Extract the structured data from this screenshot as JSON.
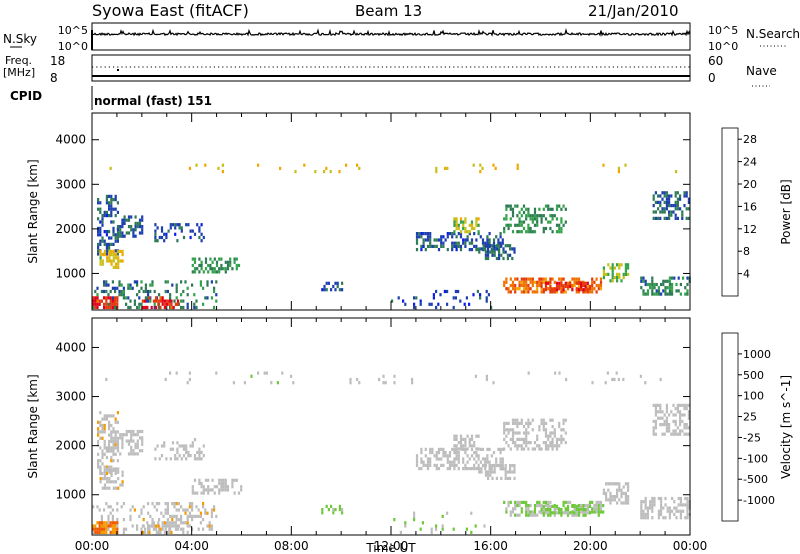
{
  "header": {
    "title": "Syowa East (fitACF)",
    "beam": "Beam 13",
    "date": "21/Jan/2010"
  },
  "nsky_panel": {
    "label": "N.Sky",
    "label_right": "N.Search",
    "ticks_left": [
      "10^5",
      "10^0"
    ],
    "ticks_right": [
      "10^5",
      "10^0"
    ]
  },
  "freq_panel": {
    "label": "Freq.",
    "unit": "[MHz]",
    "label_right": "Nave",
    "ticks_left": [
      "18",
      "8"
    ],
    "ticks_right": [
      "60",
      "0"
    ]
  },
  "cpid_panel": {
    "label": "CPID",
    "text": "normal (fast) 151"
  },
  "colors": {
    "power": [
      "#0a1de6",
      "#1e3fae",
      "#2d7a55",
      "#33a24a",
      "#c8c01a",
      "#f2a800",
      "#f07000",
      "#e43a0d",
      "#e2001a"
    ],
    "velocity": [
      "#e2001a",
      "#f05a00",
      "#f59b00",
      "#bdbdbd",
      "#bdbdbd",
      "#6fc83a",
      "#2e8a4a",
      "#2a4aa8",
      "#1e32c8"
    ]
  },
  "chart_data": [
    {
      "type": "heatmap",
      "name": "power",
      "ylabel": "Slant Range [km]",
      "xlabel": "",
      "x_ticks": [
        "00:00",
        "04:00",
        "08:00",
        "12:00",
        "16:00",
        "20:00",
        "00:00"
      ],
      "y_ticks": [
        "1000",
        "2000",
        "3000",
        "4000"
      ],
      "ylim": [
        180,
        4600
      ],
      "xlim_hours": [
        0,
        24
      ],
      "colorbar": {
        "label": "Power [dB]",
        "ticks": [
          "4",
          "8",
          "12",
          "16",
          "20",
          "24",
          "28"
        ],
        "range": [
          0,
          30
        ]
      },
      "regions": [
        {
          "t0": 0,
          "t1": 24,
          "r0": 3250,
          "r1": 3450,
          "value": 16,
          "density": 0.04
        },
        {
          "t0": 0.2,
          "t1": 1.0,
          "r0": 1400,
          "r1": 2700,
          "value": 6,
          "density": 0.45
        },
        {
          "t0": 1.0,
          "t1": 2.0,
          "r0": 1800,
          "r1": 2300,
          "value": 7,
          "density": 0.5
        },
        {
          "t0": 0.3,
          "t1": 1.2,
          "r0": 1100,
          "r1": 1500,
          "value": 16,
          "density": 0.5
        },
        {
          "t0": 2.5,
          "t1": 4.5,
          "r0": 1700,
          "r1": 2100,
          "value": 6,
          "density": 0.3
        },
        {
          "t0": 4.0,
          "t1": 6.0,
          "r0": 1000,
          "r1": 1300,
          "value": 10,
          "density": 0.45
        },
        {
          "t0": 0,
          "t1": 5.0,
          "r0": 200,
          "r1": 800,
          "value": 8,
          "density": 0.3
        },
        {
          "t0": 0,
          "t1": 1.0,
          "r0": 200,
          "r1": 450,
          "value": 26,
          "density": 0.7
        },
        {
          "t0": 2.0,
          "t1": 3.5,
          "r0": 200,
          "r1": 450,
          "value": 26,
          "density": 0.55
        },
        {
          "t0": 9.2,
          "t1": 10.0,
          "r0": 600,
          "r1": 750,
          "value": 6,
          "density": 0.5
        },
        {
          "t0": 13.0,
          "t1": 16.5,
          "r0": 1500,
          "r1": 1900,
          "value": 6,
          "density": 0.5
        },
        {
          "t0": 14.5,
          "t1": 15.5,
          "r0": 1900,
          "r1": 2200,
          "value": 14,
          "density": 0.55
        },
        {
          "t0": 16.5,
          "t1": 19.0,
          "r0": 1900,
          "r1": 2500,
          "value": 10,
          "density": 0.45
        },
        {
          "t0": 15.5,
          "t1": 17.0,
          "r0": 1300,
          "r1": 1600,
          "value": 7,
          "density": 0.5
        },
        {
          "t0": 16.5,
          "t1": 20.5,
          "r0": 550,
          "r1": 850,
          "value": 22,
          "density": 0.55
        },
        {
          "t0": 18.0,
          "t1": 20.0,
          "r0": 600,
          "r1": 750,
          "value": 26,
          "density": 0.65
        },
        {
          "t0": 20.5,
          "t1": 21.5,
          "r0": 800,
          "r1": 1200,
          "value": 13,
          "density": 0.5
        },
        {
          "t0": 22.0,
          "t1": 24.0,
          "r0": 500,
          "r1": 900,
          "value": 9,
          "density": 0.5
        },
        {
          "t0": 22.5,
          "t1": 24.0,
          "r0": 2200,
          "r1": 2800,
          "value": 7,
          "density": 0.5
        },
        {
          "t0": 12.0,
          "t1": 16.0,
          "r0": 200,
          "r1": 600,
          "value": 5,
          "density": 0.1
        }
      ]
    },
    {
      "type": "heatmap",
      "name": "velocity",
      "ylabel": "Slant Range [km]",
      "xlabel": "Time UT",
      "x_ticks": [
        "00:00",
        "04:00",
        "08:00",
        "12:00",
        "16:00",
        "20:00",
        "00:00"
      ],
      "y_ticks": [
        "1000",
        "2000",
        "3000",
        "4000"
      ],
      "ylim": [
        180,
        4600
      ],
      "xlim_hours": [
        0,
        24
      ],
      "colorbar": {
        "label": "Velocity [m s^-1]",
        "ticks": [
          "1000",
          "500",
          "100",
          "25",
          "-25",
          "-100",
          "-500",
          "-1000"
        ],
        "range": [
          -1200,
          1200
        ]
      },
      "regions": [
        {
          "t0": 0,
          "t1": 24,
          "r0": 3250,
          "r1": 3450,
          "value": 20,
          "density": 0.04
        },
        {
          "t0": 0.2,
          "t1": 1.0,
          "r0": 1400,
          "r1": 2700,
          "value": -300,
          "density": 0.45
        },
        {
          "t0": 1.0,
          "t1": 2.0,
          "r0": 1800,
          "r1": 2300,
          "value": 0,
          "density": 0.5
        },
        {
          "t0": 0.3,
          "t1": 1.2,
          "r0": 1100,
          "r1": 1500,
          "value": -300,
          "density": 0.5
        },
        {
          "t0": 2.5,
          "t1": 4.5,
          "r0": 1700,
          "r1": 2100,
          "value": 0,
          "density": 0.3
        },
        {
          "t0": 4.0,
          "t1": 6.0,
          "r0": 1000,
          "r1": 1300,
          "value": 0,
          "density": 0.45
        },
        {
          "t0": 0,
          "t1": 5.0,
          "r0": 200,
          "r1": 800,
          "value": -300,
          "density": 0.3
        },
        {
          "t0": 0,
          "t1": 1.0,
          "r0": 200,
          "r1": 450,
          "value": -700,
          "density": 0.7
        },
        {
          "t0": 2.0,
          "t1": 3.5,
          "r0": 200,
          "r1": 450,
          "value": -300,
          "density": 0.55
        },
        {
          "t0": 9.2,
          "t1": 10.0,
          "r0": 600,
          "r1": 750,
          "value": 150,
          "density": 0.5
        },
        {
          "t0": 13.0,
          "t1": 16.5,
          "r0": 1500,
          "r1": 1900,
          "value": 0,
          "density": 0.5
        },
        {
          "t0": 14.5,
          "t1": 15.5,
          "r0": 1900,
          "r1": 2200,
          "value": 0,
          "density": 0.55
        },
        {
          "t0": 16.5,
          "t1": 19.0,
          "r0": 1900,
          "r1": 2500,
          "value": 0,
          "density": 0.45
        },
        {
          "t0": 15.5,
          "t1": 17.0,
          "r0": 1300,
          "r1": 1600,
          "value": 0,
          "density": 0.5
        },
        {
          "t0": 16.5,
          "t1": 20.5,
          "r0": 550,
          "r1": 850,
          "value": 150,
          "density": 0.55
        },
        {
          "t0": 18.0,
          "t1": 20.0,
          "r0": 600,
          "r1": 750,
          "value": 150,
          "density": 0.65
        },
        {
          "t0": 20.5,
          "t1": 21.5,
          "r0": 800,
          "r1": 1200,
          "value": 0,
          "density": 0.5
        },
        {
          "t0": 22.0,
          "t1": 24.0,
          "r0": 500,
          "r1": 900,
          "value": -200,
          "density": 0.5
        },
        {
          "t0": 22.5,
          "t1": 24.0,
          "r0": 2200,
          "r1": 2800,
          "value": 0,
          "density": 0.5
        },
        {
          "t0": 12.0,
          "t1": 16.0,
          "r0": 200,
          "r1": 600,
          "value": 100,
          "density": 0.1
        }
      ]
    }
  ]
}
